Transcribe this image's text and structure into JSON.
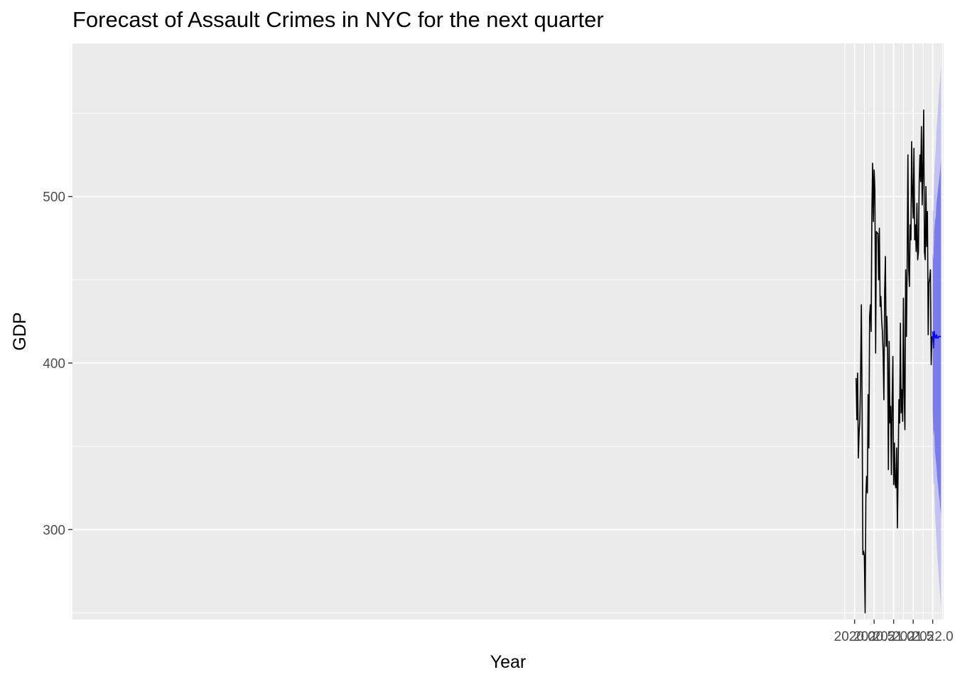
{
  "chart_data": {
    "type": "line",
    "title": "Forecast of Assault Crimes in NYC for the next quarter",
    "xlabel": "Year",
    "ylabel": "GDP",
    "xlim": [
      1999.97,
      2022.28
    ],
    "ylim": [
      246,
      592
    ],
    "x_ticks": [
      2020.0,
      2020.5,
      2021.0,
      2021.5,
      2022.0
    ],
    "x_tick_labels": [
      "2020.0",
      "2020.5",
      "2021.0",
      "2021.5",
      "2022.0"
    ],
    "y_ticks": [
      300,
      400,
      500
    ],
    "y_tick_labels": [
      "300",
      "400",
      "500"
    ],
    "grid": true,
    "legend": "none",
    "colors": {
      "panel": "#ebebeb",
      "grid": "#ffffff",
      "history": "#000000",
      "forecast": "#0000ff",
      "band80": "#7b7bee",
      "band95": "#c2c2f5"
    },
    "series": [
      {
        "name": "",
        "x": [
          2020.0385,
          2020.0577,
          2020.0769,
          2020.0962,
          2020.1154,
          2020.1346,
          2020.1538,
          2020.1731,
          2020.1923,
          2020.2115,
          2020.2308,
          2020.25,
          2020.2692,
          2020.2885,
          2020.3077,
          2020.3269,
          2020.3462,
          2020.3654,
          2020.3846,
          2020.4038,
          2020.4231,
          2020.4423,
          2020.4615,
          2020.4808,
          2020.5,
          2020.5192,
          2020.5385,
          2020.5577,
          2020.5769,
          2020.5962,
          2020.6154,
          2020.6346,
          2020.6538,
          2020.6731,
          2020.6923,
          2020.7115,
          2020.7308,
          2020.75,
          2020.7692,
          2020.7885,
          2020.8077,
          2020.8269,
          2020.8462,
          2020.8654,
          2020.8846,
          2020.9038,
          2020.9231,
          2020.9423,
          2020.9615,
          2020.9808,
          2021.0,
          2021.0192,
          2021.0385,
          2021.0577,
          2021.0769,
          2021.0962,
          2021.1154,
          2021.1346,
          2021.1538,
          2021.1731,
          2021.1923,
          2021.2115,
          2021.2308,
          2021.25,
          2021.2692,
          2021.2885,
          2021.3077,
          2021.3269,
          2021.3462,
          2021.3654,
          2021.3846,
          2021.4038,
          2021.4231,
          2021.4423,
          2021.4615,
          2021.4808,
          2021.5,
          2021.5192,
          2021.5385,
          2021.5577,
          2021.5769,
          2021.5962,
          2021.6154,
          2021.6346,
          2021.6538,
          2021.6731,
          2021.6923,
          2021.7115,
          2021.7308,
          2021.75,
          2021.7692,
          2021.7885,
          2021.8077,
          2021.8269,
          2021.8462,
          2021.8654,
          2021.8846,
          2021.9038,
          2021.9231,
          2021.9423,
          2021.9615,
          2021.9808
        ],
        "values": [
          391,
          366,
          394,
          343,
          358,
          366,
          393,
          435,
          371,
          285,
          287,
          284,
          250,
          319,
          332,
          322,
          381,
          349,
          428,
          435,
          419,
          490,
          520,
          485,
          516,
          504,
          406,
          479,
          478,
          478,
          450,
          481,
          434,
          440,
          426,
          419,
          406,
          378,
          443,
          464,
          410,
          428,
          405,
          336,
          413,
          364,
          374,
          333,
          378,
          404,
          327,
          352,
          327,
          325,
          349,
          301,
          338,
          378,
          364,
          424,
          370,
          384,
          365,
          439,
          381,
          360,
          456,
          416,
          459,
          525,
          457,
          446,
          483,
          474,
          533,
          502,
          487,
          529,
          474,
          483,
          467,
          496,
          462,
          467,
          508,
          525,
          509,
          542,
          495,
          516,
          552,
          467,
          462,
          506,
          470,
          491,
          417,
          448,
          451,
          456,
          399,
          416
        ]
      },
      {
        "name": "",
        "x": [
          2022.0,
          2022.0192,
          2022.0385,
          2022.0577,
          2022.0769,
          2022.0962,
          2022.1154,
          2022.1346,
          2022.1538,
          2022.1731,
          2022.1923,
          2022.2115
        ],
        "values": [
          419,
          409,
          419,
          416,
          415,
          417,
          415,
          415,
          416,
          416,
          416,
          416
        ]
      }
    ],
    "bands": [
      {
        "level": "95",
        "x": [
          2022.0,
          2022.0192,
          2022.0385,
          2022.0577,
          2022.0769,
          2022.0962,
          2022.1154,
          2022.1346,
          2022.1538,
          2022.1731,
          2022.1923,
          2022.2115
        ],
        "upper": [
          492,
          491,
          512,
          521,
          528,
          539,
          546,
          552,
          560,
          566,
          572,
          578
        ],
        "lower": [
          347,
          327,
          328,
          311,
          303,
          295,
          285,
          279,
          272,
          266,
          259,
          253
        ]
      },
      {
        "level": "80",
        "x": [
          2022.0,
          2022.0192,
          2022.0385,
          2022.0577,
          2022.0769,
          2022.0962,
          2022.1154,
          2022.1346,
          2022.1538,
          2022.1731,
          2022.1923,
          2022.2115
        ],
        "upper": [
          466,
          462,
          479,
          485,
          488,
          496,
          500,
          504,
          508,
          512,
          516,
          522
        ],
        "lower": [
          372,
          356,
          360,
          347,
          342,
          338,
          331,
          327,
          322,
          318,
          313,
          309
        ]
      }
    ]
  }
}
